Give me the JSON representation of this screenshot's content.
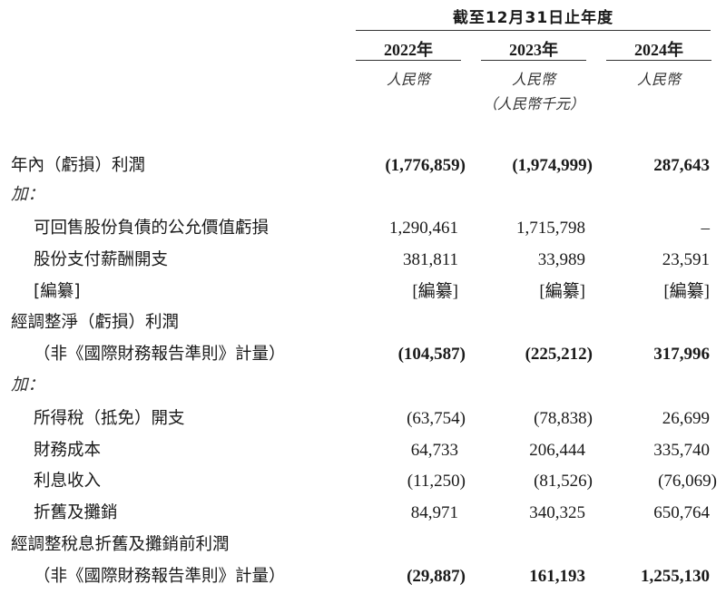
{
  "header": {
    "period": "截至12月31日止年度",
    "years": [
      "2022年",
      "2023年",
      "2024年"
    ],
    "currency": [
      "人民幣",
      "人民幣",
      "人民幣"
    ],
    "unit": "（人民幣千元）"
  },
  "rows": [
    {
      "label": "年內（虧損）利潤",
      "values": [
        "(1,776,859)",
        "(1,974,999)",
        "287,643"
      ]
    },
    {
      "label": "加：",
      "values": [
        "",
        "",
        ""
      ]
    },
    {
      "label": "可回售股份負債的公允價值虧損",
      "values": [
        "1,290,461",
        "1,715,798",
        "–"
      ]
    },
    {
      "label": "股份支付薪酬開支",
      "values": [
        "381,811",
        "33,989",
        "23,591"
      ]
    },
    {
      "label": "[編纂]",
      "values": [
        "[編纂]",
        "[編纂]",
        "[編纂]"
      ]
    },
    {
      "label": "經調整淨（虧損）利潤",
      "values": [
        "",
        "",
        ""
      ]
    },
    {
      "label": "（非《國際財務報告準則》計量）",
      "values": [
        "(104,587)",
        "(225,212)",
        "317,996"
      ]
    },
    {
      "label": "加：",
      "values": [
        "",
        "",
        ""
      ]
    },
    {
      "label": "所得稅（抵免）開支",
      "values": [
        "(63,754)",
        "(78,838)",
        "26,699"
      ]
    },
    {
      "label": "財務成本",
      "values": [
        "64,733",
        "206,444",
        "335,740"
      ]
    },
    {
      "label": "利息收入",
      "values": [
        "(11,250)",
        "(81,526)",
        "(76,069)"
      ]
    },
    {
      "label": "折舊及攤銷",
      "values": [
        "84,971",
        "340,325",
        "650,764"
      ]
    },
    {
      "label": "經調整稅息折舊及攤銷前利潤",
      "values": [
        "",
        "",
        ""
      ]
    },
    {
      "label": "（非《國際財務報告準則》計量）",
      "values": [
        "(29,887)",
        "161,193",
        "1,255,130"
      ]
    }
  ]
}
